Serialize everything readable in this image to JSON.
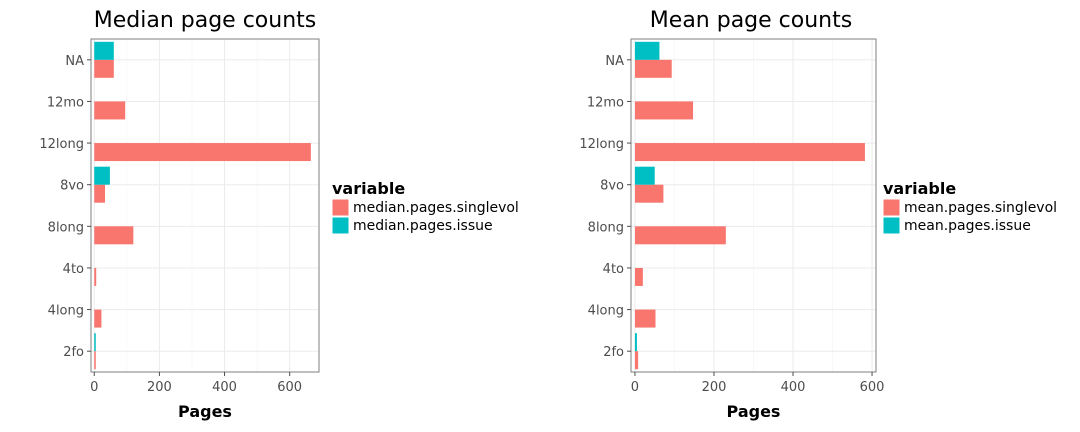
{
  "colors": {
    "singlevol": "#F8766D",
    "issue": "#00BFC4"
  },
  "chart_data": [
    {
      "type": "bar",
      "orientation": "horizontal",
      "title": "Median page counts",
      "xlabel": "Pages",
      "ylabel": "",
      "xlim": [
        -10,
        690
      ],
      "xticks": [
        0,
        200,
        400,
        600
      ],
      "categories": [
        "NA",
        "12mo",
        "12long",
        "8vo",
        "8long",
        "4to",
        "4long",
        "2fo"
      ],
      "legend_title": "variable",
      "legend_position": "right",
      "grid": true,
      "series": [
        {
          "name": "median.pages.singlevol",
          "color": "#F8766D",
          "values": [
            60,
            95,
            665,
            33,
            120,
            6,
            22,
            2
          ]
        },
        {
          "name": "median.pages.issue",
          "color": "#00BFC4",
          "values": [
            60,
            null,
            null,
            48,
            null,
            null,
            null,
            2
          ]
        }
      ]
    },
    {
      "type": "bar",
      "orientation": "horizontal",
      "title": "Mean page counts",
      "xlabel": "Pages",
      "ylabel": "",
      "xlim": [
        -10,
        610
      ],
      "xticks": [
        0,
        200,
        400,
        600
      ],
      "categories": [
        "NA",
        "12mo",
        "12long",
        "8vo",
        "8long",
        "4to",
        "4long",
        "2fo"
      ],
      "legend_title": "variable",
      "legend_position": "right",
      "grid": true,
      "series": [
        {
          "name": "mean.pages.singlevol",
          "color": "#F8766D",
          "values": [
            93,
            147,
            582,
            72,
            230,
            20,
            52,
            8
          ]
        },
        {
          "name": "mean.pages.issue",
          "color": "#00BFC4",
          "values": [
            62,
            null,
            null,
            50,
            null,
            null,
            null,
            5
          ]
        }
      ]
    }
  ]
}
